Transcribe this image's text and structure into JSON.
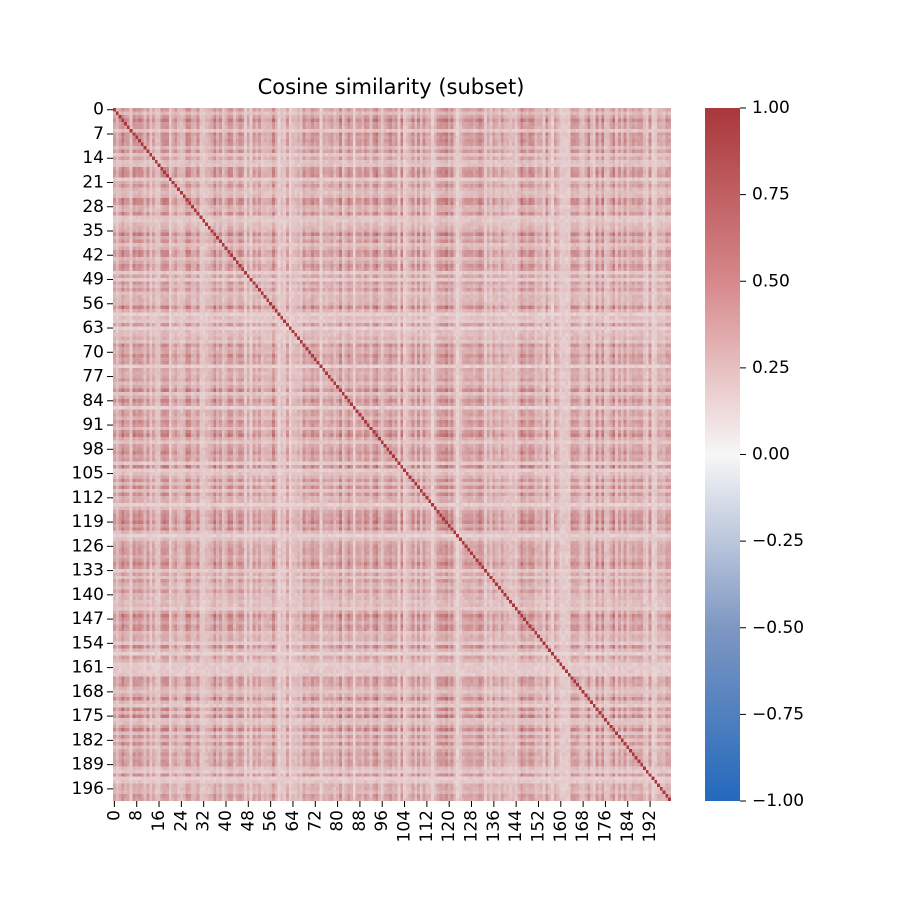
{
  "chart_data": {
    "type": "heatmap",
    "title": "Cosine similarity (subset)",
    "xlabel": "",
    "ylabel": "",
    "n": 200,
    "x_tick_labels": [
      "0",
      "8",
      "16",
      "24",
      "32",
      "40",
      "48",
      "56",
      "64",
      "72",
      "80",
      "88",
      "96",
      "104",
      "112",
      "120",
      "128",
      "136",
      "144",
      "152",
      "160",
      "168",
      "176",
      "184",
      "192"
    ],
    "y_tick_labels": [
      "0",
      "7",
      "14",
      "21",
      "28",
      "35",
      "42",
      "49",
      "56",
      "63",
      "70",
      "77",
      "84",
      "91",
      "98",
      "105",
      "112",
      "119",
      "126",
      "133",
      "140",
      "147",
      "154",
      "161",
      "168",
      "175",
      "182",
      "189",
      "196"
    ],
    "colorbar": {
      "range": [
        -1.0,
        1.0
      ],
      "tick_labels": [
        "1.00",
        "0.75",
        "0.50",
        "0.25",
        "0.00",
        "−0.25",
        "−0.50",
        "−0.75",
        "−1.00"
      ],
      "colormap": "vlag",
      "colors": {
        "low": "#2369bd",
        "mid": "#f7f6f6",
        "high": "#a9373b"
      }
    },
    "diagonal_value": 1.0,
    "off_diagonal_value_range": [
      0.1,
      0.75
    ],
    "grid": false,
    "legend": "colorbar-right"
  }
}
